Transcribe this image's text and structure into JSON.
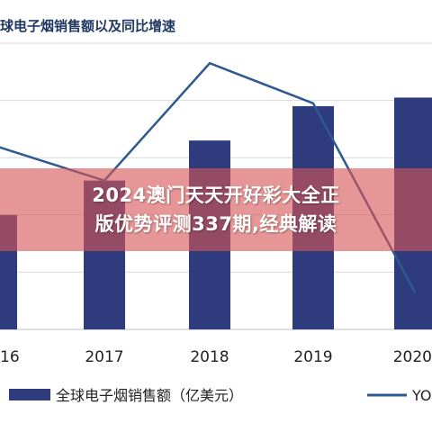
{
  "banner": {
    "line1": "2024澳门天天开好彩大全正",
    "line2": "版优势评测337期,经典解读"
  },
  "colors": {
    "bar": "#2e3c7d",
    "line": "#2e5a91",
    "grid": "#d9d9d9",
    "title": "#1f3864",
    "banner": "#d65656"
  },
  "chart_data": {
    "type": "bar",
    "title": "球电子烟销售额以及同比增速",
    "categories": [
      "16",
      "2017",
      "2018",
      "2019",
      "2020"
    ],
    "ylim": [
      0,
      100
    ],
    "grid": true,
    "legend_position": "bottom",
    "series": [
      {
        "name": "全球电子烟销售额（亿美元）",
        "type": "bar",
        "values": [
          40,
          52,
          66,
          78,
          81
        ]
      },
      {
        "name": "YO",
        "type": "line",
        "values": [
          64,
          52,
          93,
          79,
          13
        ]
      }
    ]
  }
}
